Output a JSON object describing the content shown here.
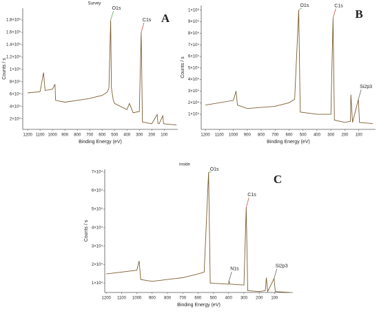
{
  "chart_data": [
    {
      "type": "line",
      "title": "Survey",
      "panel_label": "A",
      "x_label": "Binding Energy (eV)",
      "y_label": "Counts / s",
      "color": "#7a5c2e",
      "x": [
        1200,
        1100,
        1072,
        1060,
        1000,
        980,
        975,
        900,
        800,
        700,
        600,
        560,
        545,
        531,
        525,
        510,
        500,
        400,
        380,
        350,
        300,
        285,
        275,
        200,
        156,
        150,
        140,
        111,
        105,
        100,
        0
      ],
      "values": [
        62000,
        64000,
        95000,
        66000,
        68000,
        76000,
        50000,
        47000,
        50000,
        53000,
        58000,
        63000,
        70000,
        180000,
        70000,
        50000,
        45000,
        35000,
        45000,
        30000,
        32000,
        160000,
        15000,
        12000,
        27000,
        13000,
        12000,
        25000,
        13000,
        12000,
        10000
      ],
      "xlim": [
        1240,
        -10
      ],
      "xticks": [
        1200,
        1100,
        1000,
        900,
        800,
        700,
        600,
        500,
        400,
        300,
        200,
        100
      ],
      "ylim": [
        3000,
        199000
      ],
      "yticks": [
        {
          "value": 20000,
          "label": "2×10⁴"
        },
        {
          "value": 40000,
          "label": "4×10⁴"
        },
        {
          "value": 60000,
          "label": "6×10⁴"
        },
        {
          "value": 80000,
          "label": "8×10⁴"
        },
        {
          "value": 100000,
          "label": "1×10⁵"
        },
        {
          "value": 120000,
          "label": "1.2×10⁵"
        },
        {
          "value": 140000,
          "label": "1.4×10⁵"
        },
        {
          "value": 160000,
          "label": "1.6×10⁵"
        },
        {
          "value": 180000,
          "label": "1.8×10⁵"
        }
      ],
      "annotations": [
        {
          "text": "O1s",
          "x": 531,
          "color": "#3a9a3a"
        },
        {
          "text": "C1s",
          "x": 285,
          "color": "#c0392b"
        }
      ]
    },
    {
      "type": "line",
      "panel_label": "B",
      "x_label": "Binding Energy (eV)",
      "y_label": "Counts / s",
      "color": "#7a5c2e",
      "x": [
        1200,
        1000,
        980,
        970,
        900,
        700,
        600,
        560,
        531,
        520,
        400,
        300,
        285,
        275,
        200,
        160,
        157,
        145,
        103,
        95,
        0
      ],
      "values": [
        18000,
        22000,
        30000,
        18000,
        15000,
        17000,
        20000,
        23000,
        100000,
        12000,
        10000,
        10000,
        93000,
        5000,
        3000,
        4000,
        27000,
        3000,
        23000,
        3000,
        2000
      ],
      "xlim": [
        1230,
        -20
      ],
      "xticks": [
        1200,
        1100,
        1000,
        900,
        800,
        700,
        600,
        500,
        400,
        300,
        200,
        100
      ],
      "ylim": [
        -3000,
        104000
      ],
      "yticks": [
        {
          "value": 10000,
          "label": "1×10⁴"
        },
        {
          "value": 20000,
          "label": "2×10⁴"
        },
        {
          "value": 30000,
          "label": "3×10⁴"
        },
        {
          "value": 40000,
          "label": "4×10⁴"
        },
        {
          "value": 50000,
          "label": "5×10⁴"
        },
        {
          "value": 60000,
          "label": "6×10⁴"
        },
        {
          "value": 70000,
          "label": "7×10⁴"
        },
        {
          "value": 80000,
          "label": "8×10⁴"
        },
        {
          "value": 90000,
          "label": "9×10⁴"
        },
        {
          "value": 100000,
          "label": "1×10⁵"
        }
      ],
      "annotations": [
        {
          "text": "O1s",
          "x": 531,
          "color": "#3a9a3a"
        },
        {
          "text": "C1s",
          "x": 285,
          "color": "#c0392b"
        },
        {
          "text": "Si2p3",
          "x": 103,
          "color": "#555555"
        }
      ]
    },
    {
      "type": "line",
      "title": "inside",
      "panel_label": "C",
      "x_label": "Binding Energy (eV)",
      "y_label": "Counts / s",
      "color": "#7a5c2e",
      "x": [
        1200,
        1000,
        985,
        975,
        900,
        700,
        600,
        560,
        531,
        520,
        400,
        398,
        390,
        300,
        285,
        275,
        200,
        160,
        153,
        145,
        103,
        95,
        0
      ],
      "values": [
        15000,
        17000,
        22000,
        12000,
        11000,
        13000,
        15000,
        16000,
        70000,
        10000,
        9500,
        11000,
        9500,
        9000,
        51000,
        6000,
        5500,
        6000,
        13000,
        5500,
        12500,
        5500,
        5000
      ],
      "xlim": [
        1210,
        -20
      ],
      "xticks": [
        1200,
        1100,
        1000,
        900,
        800,
        700,
        600,
        500,
        400,
        300,
        200,
        100
      ],
      "ylim": [
        5000,
        71500
      ],
      "yticks": [
        {
          "value": 10000,
          "label": "1×10⁴"
        },
        {
          "value": 20000,
          "label": "2×10⁴"
        },
        {
          "value": 30000,
          "label": "3×10⁴"
        },
        {
          "value": 40000,
          "label": "4×10⁴"
        },
        {
          "value": 50000,
          "label": "5×10⁴"
        },
        {
          "value": 60000,
          "label": "6×10⁴"
        },
        {
          "value": 70000,
          "label": "7×10⁴"
        }
      ],
      "annotations": [
        {
          "text": "O1s",
          "x": 531,
          "color": "#3a9a3a"
        },
        {
          "text": "C1s",
          "x": 285,
          "color": "#c0392b"
        },
        {
          "text": "N1s",
          "x": 398,
          "color": "#555555"
        },
        {
          "text": "Si2p3",
          "x": 103,
          "color": "#555555"
        }
      ]
    }
  ]
}
